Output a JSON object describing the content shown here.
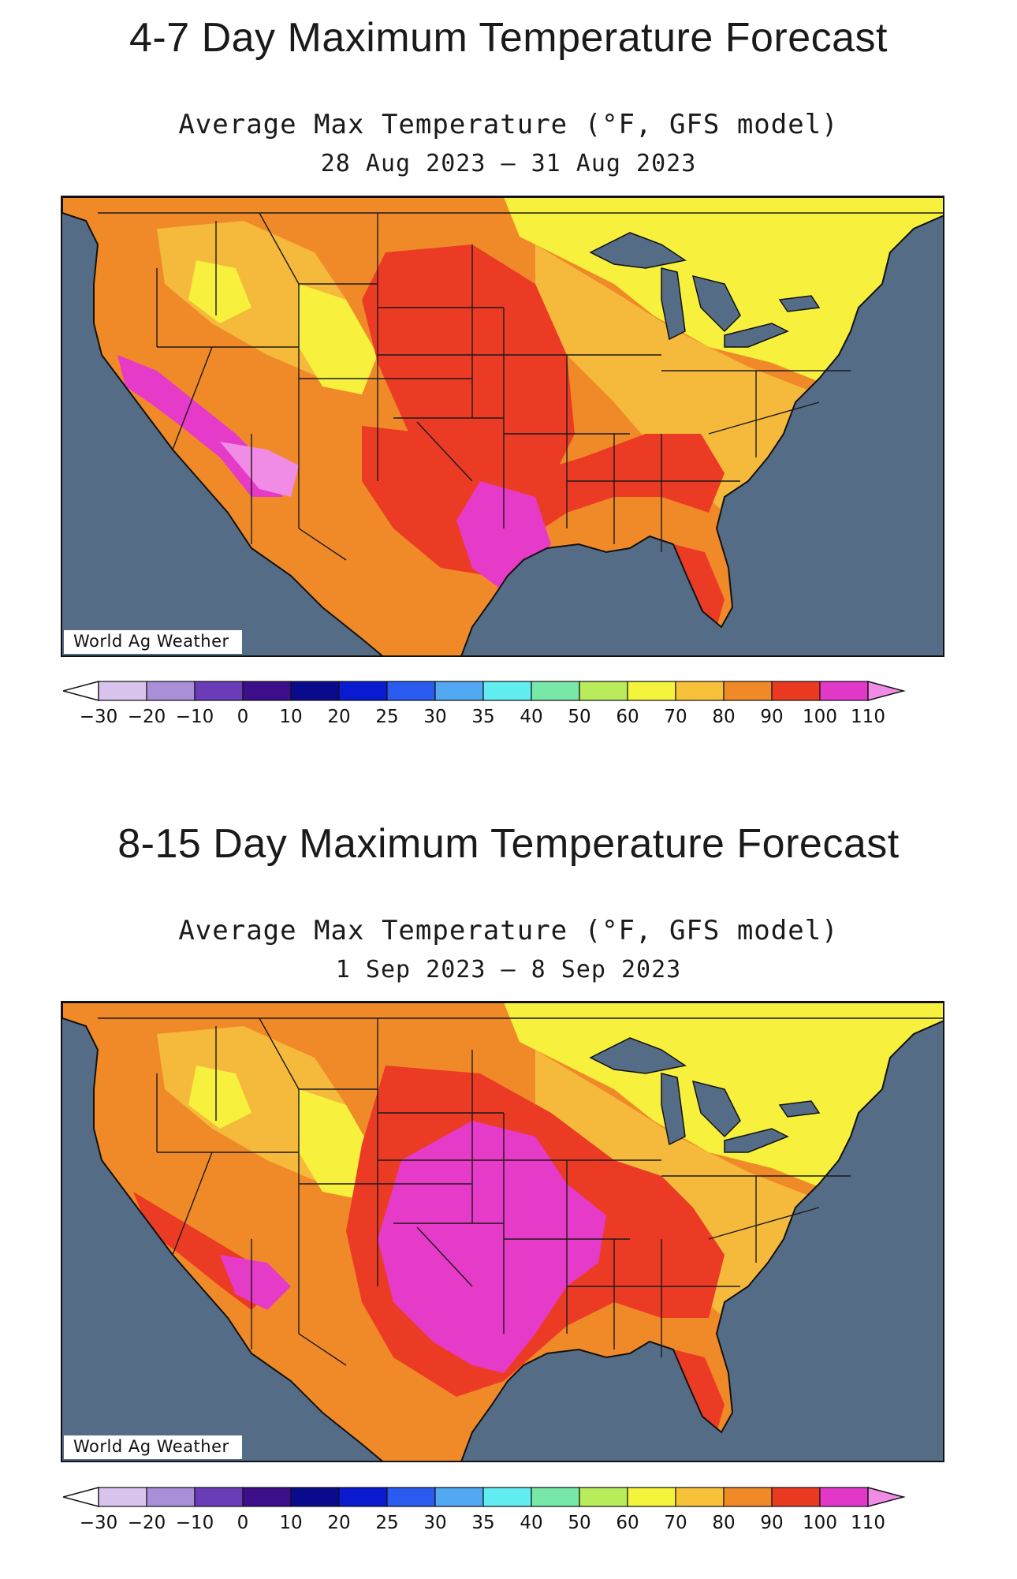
{
  "colors": {
    "water": "#556c86",
    "land_yellow": "#f7f03c",
    "land_light_orange": "#f5b93c",
    "land_orange": "#f08a28",
    "land_red": "#ec3b24",
    "land_magenta": "#e63ac8",
    "land_pink": "#f08ce6",
    "land_green": "#a8e858"
  },
  "legend": {
    "labels": [
      "−30",
      "−20",
      "−10",
      "0",
      "10",
      "20",
      "25",
      "30",
      "35",
      "40",
      "50",
      "60",
      "70",
      "80",
      "90",
      "100",
      "110"
    ],
    "colors": [
      "#ffffff",
      "#d8c4ec",
      "#a98fd8",
      "#6a3cb8",
      "#3c0e8a",
      "#0a0a8c",
      "#0a1ad0",
      "#2a5aee",
      "#52a8f2",
      "#62eef0",
      "#78e8a8",
      "#b8ec5a",
      "#f4f43c",
      "#f7c23a",
      "#f08a28",
      "#ea3a22",
      "#e238c8",
      "#f08ce6"
    ]
  },
  "forecasts": [
    {
      "heading": "4-7 Day Maximum Temperature Forecast",
      "subtitle": "Average Max Temperature (°F, GFS model)",
      "daterange": "28 Aug 2023 – 31 Aug 2023",
      "credit": "World Ag Weather",
      "scenario": "warm_central_plains"
    },
    {
      "heading": "8-15 Day Maximum Temperature Forecast",
      "subtitle": "Average Max Temperature (°F, GFS model)",
      "daterange": "1 Sep 2023 – 8 Sep 2023",
      "credit": "World Ag Weather",
      "scenario": "hot_south_central"
    }
  ]
}
